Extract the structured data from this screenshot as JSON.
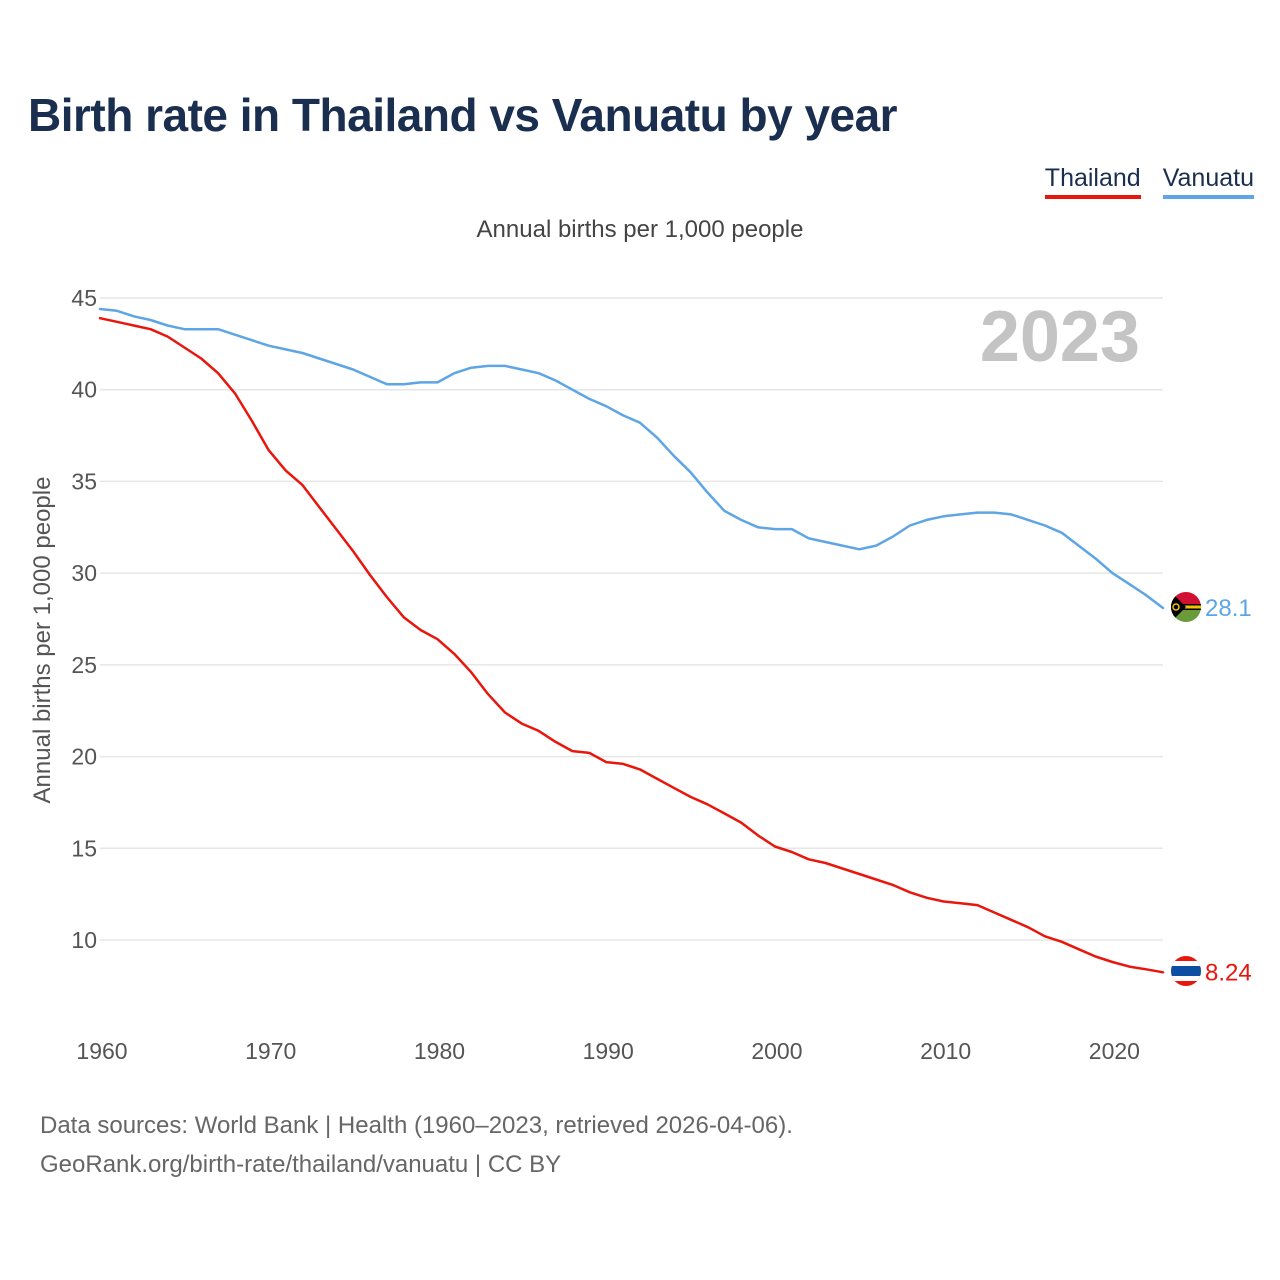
{
  "title": "Birth rate in Thailand vs Vanuatu by year",
  "subtitle": "Annual births per 1,000 people",
  "year_badge": "2023",
  "legend": [
    {
      "label": "Thailand",
      "color": "#e8160c"
    },
    {
      "label": "Vanuatu",
      "color": "#5ea5e6"
    }
  ],
  "footer": {
    "line1": "Data sources: World Bank | Health (1960–2023, retrieved 2026-04-06).",
    "line2": "GeoRank.org/birth-rate/thailand/vanuatu | CC BY"
  },
  "chart_data": {
    "type": "line",
    "title": "Birth rate in Thailand vs Vanuatu by year",
    "xlabel": "",
    "ylabel": "Annual births per 1,000 people",
    "xlim": [
      1960,
      2023
    ],
    "ylim": [
      7,
      46
    ],
    "x_ticks": [
      1960,
      1970,
      1980,
      1990,
      2000,
      2010,
      2020
    ],
    "y_ticks": [
      10,
      15,
      20,
      25,
      30,
      35,
      40,
      45
    ],
    "grid": true,
    "x": [
      1960,
      1961,
      1962,
      1963,
      1964,
      1965,
      1966,
      1967,
      1968,
      1969,
      1970,
      1971,
      1972,
      1973,
      1974,
      1975,
      1976,
      1977,
      1978,
      1979,
      1980,
      1981,
      1982,
      1983,
      1984,
      1985,
      1986,
      1987,
      1988,
      1989,
      1990,
      1991,
      1992,
      1993,
      1994,
      1995,
      1996,
      1997,
      1998,
      1999,
      2000,
      2001,
      2002,
      2003,
      2004,
      2005,
      2006,
      2007,
      2008,
      2009,
      2010,
      2011,
      2012,
      2013,
      2014,
      2015,
      2016,
      2017,
      2018,
      2019,
      2020,
      2021,
      2022,
      2023
    ],
    "series": [
      {
        "name": "Thailand",
        "color": "#e8160c",
        "end_label": "8.24",
        "values": [
          43.9,
          43.7,
          43.5,
          43.3,
          42.9,
          42.3,
          41.7,
          40.9,
          39.8,
          38.3,
          36.7,
          35.6,
          34.8,
          33.6,
          32.4,
          31.2,
          29.9,
          28.7,
          27.6,
          26.9,
          26.4,
          25.6,
          24.6,
          23.4,
          22.4,
          21.8,
          21.4,
          20.8,
          20.3,
          20.2,
          19.7,
          19.6,
          19.3,
          18.8,
          18.3,
          17.8,
          17.4,
          16.9,
          16.4,
          15.7,
          15.1,
          14.8,
          14.4,
          14.2,
          13.9,
          13.6,
          13.3,
          13.0,
          12.6,
          12.3,
          12.1,
          12.0,
          11.9,
          11.5,
          11.1,
          10.7,
          10.2,
          9.9,
          9.5,
          9.1,
          8.8,
          8.55,
          8.4,
          8.24
        ]
      },
      {
        "name": "Vanuatu",
        "color": "#5ea5e6",
        "end_label": "28.1",
        "values": [
          44.4,
          44.3,
          44.0,
          43.8,
          43.5,
          43.3,
          43.3,
          43.3,
          43.0,
          42.7,
          42.4,
          42.2,
          42.0,
          41.7,
          41.4,
          41.1,
          40.7,
          40.3,
          40.3,
          40.4,
          40.4,
          40.9,
          41.2,
          41.3,
          41.3,
          41.1,
          40.9,
          40.5,
          40.0,
          39.5,
          39.1,
          38.6,
          38.2,
          37.4,
          36.4,
          35.5,
          34.4,
          33.4,
          32.9,
          32.5,
          32.4,
          32.4,
          31.9,
          31.7,
          31.5,
          31.3,
          31.5,
          32.0,
          32.6,
          32.9,
          33.1,
          33.2,
          33.3,
          33.3,
          33.2,
          32.9,
          32.6,
          32.2,
          31.5,
          30.8,
          30.0,
          29.4,
          28.8,
          28.1
        ]
      }
    ]
  }
}
